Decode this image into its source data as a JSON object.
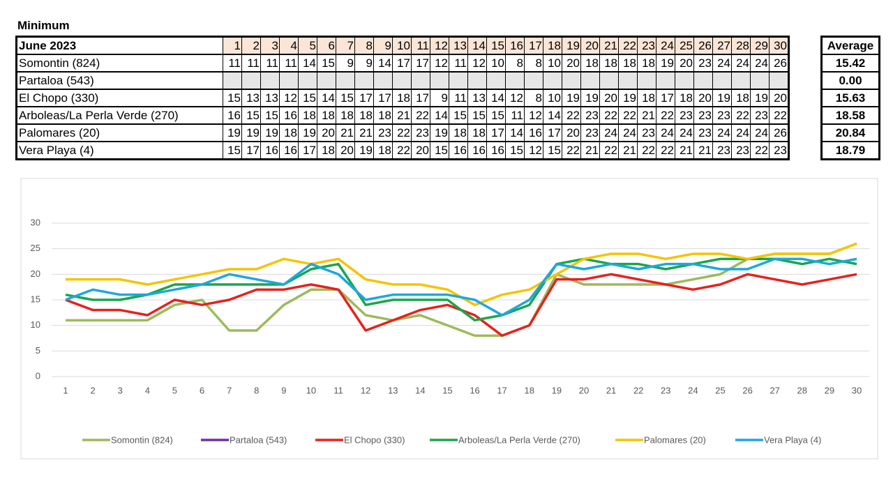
{
  "title": "Minimum",
  "table": {
    "corner": "June 2023",
    "average_header": "Average",
    "averages": [
      "15.42",
      "0.00",
      "15.63",
      "18.58",
      "20.84",
      "18.79"
    ]
  },
  "chart_data": {
    "type": "line",
    "x": [
      1,
      2,
      3,
      4,
      5,
      6,
      7,
      8,
      9,
      10,
      11,
      12,
      13,
      14,
      15,
      16,
      17,
      18,
      19,
      20,
      21,
      22,
      23,
      24,
      25,
      26,
      27,
      28,
      29,
      30
    ],
    "xlim": [
      1,
      30
    ],
    "ylim": [
      0,
      30
    ],
    "yticks": [
      0,
      5,
      10,
      15,
      20,
      25,
      30
    ],
    "grid": true,
    "legend": "bottom",
    "series": [
      {
        "name": "Somontin (824)",
        "color": "#9bbb59",
        "values": [
          11,
          11,
          11,
          11,
          14,
          15,
          9,
          9,
          14,
          17,
          17,
          12,
          11,
          12,
          10,
          8,
          8,
          10,
          20,
          18,
          18,
          18,
          18,
          19,
          20,
          23,
          24,
          24,
          24,
          26
        ]
      },
      {
        "name": "Partaloa (543)",
        "color": "#7030a0",
        "values": [
          null,
          null,
          null,
          null,
          null,
          null,
          null,
          null,
          null,
          null,
          null,
          null,
          null,
          null,
          null,
          null,
          null,
          null,
          null,
          null,
          null,
          null,
          null,
          null,
          null,
          null,
          null,
          null,
          null,
          null
        ]
      },
      {
        "name": "El Chopo (330)",
        "color": "#e8201c",
        "values": [
          15,
          13,
          13,
          12,
          15,
          14,
          15,
          17,
          17,
          18,
          17,
          9,
          11,
          13,
          14,
          12,
          8,
          10,
          19,
          19,
          20,
          19,
          18,
          17,
          18,
          20,
          19,
          18,
          19,
          20
        ]
      },
      {
        "name": "Arboleas/La Perla Verde (270)",
        "color": "#1aa64a",
        "values": [
          16,
          15,
          15,
          16,
          18,
          18,
          18,
          18,
          18,
          21,
          22,
          14,
          15,
          15,
          15,
          11,
          12,
          14,
          22,
          23,
          22,
          22,
          21,
          22,
          23,
          23,
          23,
          22,
          23,
          22
        ]
      },
      {
        "name": "Palomares (20)",
        "color": "#f5c400",
        "values": [
          19,
          19,
          19,
          18,
          19,
          20,
          21,
          21,
          23,
          22,
          23,
          19,
          18,
          18,
          17,
          14,
          16,
          17,
          20,
          23,
          24,
          24,
          23,
          24,
          24,
          23,
          24,
          24,
          24,
          26
        ]
      },
      {
        "name": "Vera Playa (4)",
        "color": "#1ba8e0",
        "values": [
          15,
          17,
          16,
          16,
          17,
          18,
          20,
          19,
          18,
          22,
          20,
          15,
          16,
          16,
          16,
          15,
          12,
          15,
          22,
          21,
          22,
          21,
          22,
          22,
          21,
          21,
          23,
          23,
          22,
          23
        ]
      }
    ]
  }
}
